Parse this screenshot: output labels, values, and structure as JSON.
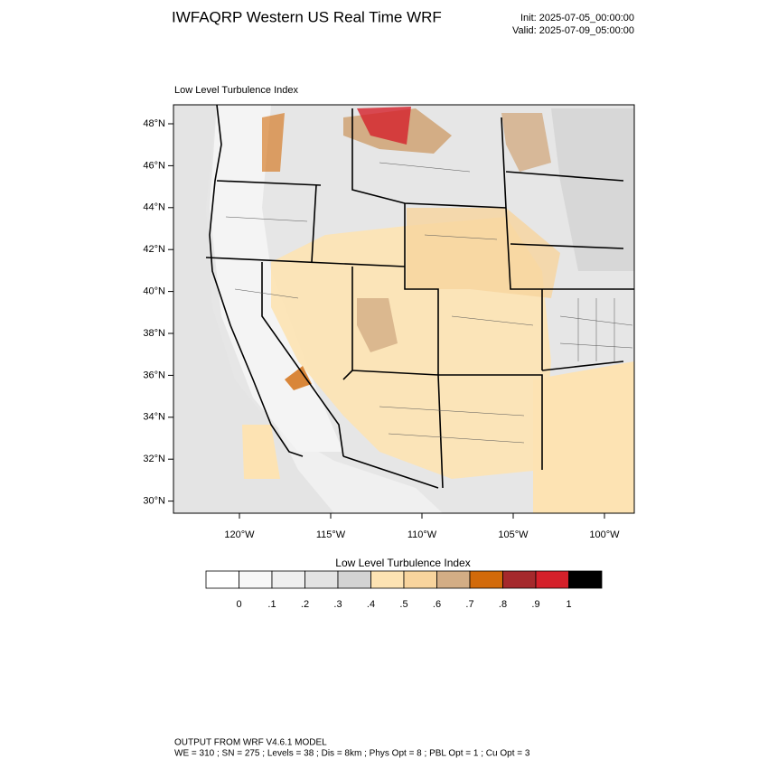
{
  "header": {
    "title": "IWFAQRP Western US Real Time WRF",
    "init": "Init: 2025-07-05_00:00:00",
    "valid": "Valid: 2025-07-09_05:00:00"
  },
  "map": {
    "title": "Low Level Turbulence Index",
    "lat_labels": [
      "48°N",
      "46°N",
      "44°N",
      "42°N",
      "40°N",
      "38°N",
      "36°N",
      "34°N",
      "32°N",
      "30°N"
    ],
    "lon_labels": [
      "120°W",
      "115°W",
      "110°W",
      "105°W",
      "100°W"
    ]
  },
  "colorbar": {
    "title": "Low Level Turbulence Index",
    "colors": [
      "#ffffff",
      "#f7f7f7",
      "#efefef",
      "#e3e3e3",
      "#d3d3d3",
      "#fde3b3",
      "#f8d49d",
      "#d3ad85",
      "#d26a0a",
      "#a5292c",
      "#d4202a",
      "#000000"
    ],
    "ticks": [
      0,
      {
        "value": 0.1,
        "label": ".1"
      },
      {
        "value": 0.2,
        "label": ".2"
      },
      {
        "value": 0.3,
        "label": ".3"
      },
      {
        "value": 0.4,
        "label": ".4"
      },
      {
        "value": 0.5,
        "label": ".5"
      },
      {
        "value": 0.6,
        "label": ".6"
      },
      {
        "value": 0.7,
        "label": ".7"
      },
      {
        "value": 0.8,
        "label": ".8"
      },
      {
        "value": 0.9,
        "label": ".9"
      },
      1
    ]
  },
  "footer": {
    "line1": "OUTPUT FROM WRF V4.6.1 MODEL",
    "line2": "WE = 310 ; SN = 275 ; Levels = 38 ; Dis = 8km ; Phys Opt = 8 ; PBL Opt = 1 ; Cu Opt = 3"
  }
}
